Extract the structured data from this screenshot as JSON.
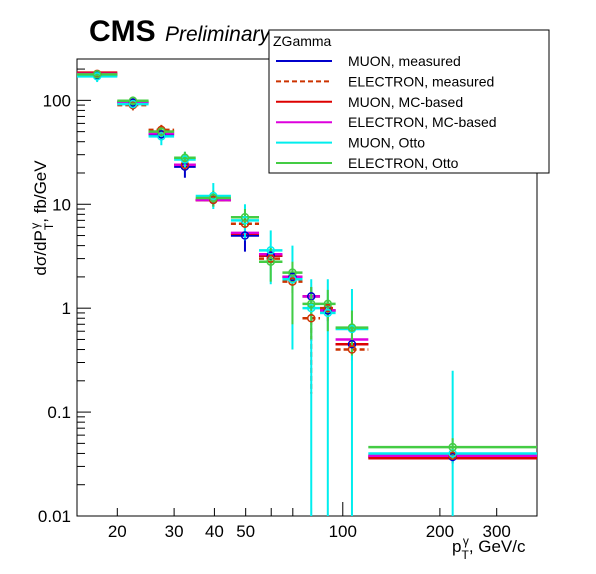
{
  "header": {
    "experiment": "CMS",
    "status": "Preliminary"
  },
  "chart_data": {
    "type": "scatter",
    "title": "",
    "xlabel": "p_T^γ, GeV/c",
    "ylabel": "dσ/dP_T^γ, fb/GeV",
    "xscale": "log",
    "yscale": "log",
    "xlim": [
      15,
      400
    ],
    "ylim": [
      0.01,
      250
    ],
    "grid": false,
    "x_tick_labels": [
      "20",
      "30",
      "40",
      "50",
      "100",
      "200",
      "300"
    ],
    "x_tick_values": [
      20,
      30,
      40,
      50,
      100,
      200,
      300
    ],
    "y_tick_labels": [
      "0.01",
      "0.1",
      "1",
      "10",
      "100"
    ],
    "y_tick_values": [
      0.01,
      0.1,
      1,
      10,
      100
    ],
    "legend": {
      "title": "ZGamma",
      "placement": "top-right"
    },
    "bins": [
      [
        15,
        20
      ],
      [
        20,
        25
      ],
      [
        25,
        30
      ],
      [
        30,
        35
      ],
      [
        35,
        45
      ],
      [
        45,
        55
      ],
      [
        55,
        65
      ],
      [
        65,
        75
      ],
      [
        75,
        85
      ],
      [
        85,
        95
      ],
      [
        95,
        120
      ],
      [
        120,
        400
      ]
    ],
    "series": [
      {
        "name": "MUON, measured",
        "color": "#0000cc",
        "style": "solid",
        "values": [
          175,
          95,
          47,
          23,
          11,
          5.0,
          3.2,
          2.0,
          1.3,
          0.95,
          0.45,
          0.037
        ],
        "err_low": [
          20,
          10,
          6,
          5,
          1.5,
          1.5,
          0.4,
          0.3,
          0.3,
          0.2,
          0.1,
          0.005
        ],
        "err_high": [
          20,
          10,
          6,
          5,
          1.5,
          1.5,
          0.4,
          0.3,
          0.3,
          0.2,
          0.1,
          0.005
        ]
      },
      {
        "name": "ELECTRON, measured",
        "color": "#cc3300",
        "style": "dashed",
        "values": [
          180,
          90,
          52,
          24,
          11,
          6.5,
          3.0,
          1.8,
          0.8,
          1.0,
          0.4,
          0.038
        ],
        "err_low": [
          15,
          10,
          6,
          4,
          1.5,
          1.0,
          0.5,
          0.4,
          0.65,
          0.2,
          0.1,
          0.005
        ],
        "err_high": [
          15,
          10,
          6,
          4,
          1.5,
          1.0,
          0.5,
          0.4,
          0.3,
          0.2,
          0.1,
          0.005
        ]
      },
      {
        "name": "MUON, MC-based",
        "color": "#dd0000",
        "style": "solid",
        "values": [
          185,
          96,
          50,
          24,
          11,
          5.2,
          3.2,
          2.0,
          1.3,
          0.95,
          0.45,
          0.036
        ],
        "err_low": [
          0,
          0,
          0,
          0,
          0,
          0,
          0,
          0,
          0,
          0,
          0,
          0
        ],
        "err_high": [
          0,
          0,
          0,
          0,
          0,
          0,
          0,
          0,
          0,
          0,
          0,
          0
        ]
      },
      {
        "name": "ELECTRON, MC-based",
        "color": "#dd00dd",
        "style": "solid",
        "values": [
          180,
          97,
          48,
          24,
          11,
          5.3,
          3.3,
          2.0,
          1.3,
          0.95,
          0.5,
          0.038
        ],
        "err_low": [
          0,
          0,
          0,
          0,
          0,
          0,
          0,
          0,
          0,
          0,
          0,
          0
        ],
        "err_high": [
          0,
          0,
          0,
          0,
          0,
          0,
          0,
          0,
          0,
          0,
          0,
          0
        ]
      },
      {
        "name": "MUON, Otto",
        "color": "#00eeee",
        "style": "solid",
        "values": [
          170,
          92,
          45,
          27,
          12,
          7.0,
          3.6,
          1.9,
          1.0,
          0.9,
          0.63,
          0.04
        ],
        "err_low": [
          20,
          10,
          8,
          5,
          3,
          2.5,
          1.9,
          1.5,
          0.995,
          0.895,
          0.625,
          0.0395
        ],
        "err_high": [
          20,
          10,
          8,
          5,
          4,
          3,
          2,
          2.1,
          0.9,
          1.0,
          0.9,
          0.21
        ]
      },
      {
        "name": "ELECTRON, Otto",
        "color": "#44cc44",
        "style": "solid",
        "values": [
          178,
          99,
          50,
          28,
          11.5,
          7.5,
          2.8,
          2.2,
          1.1,
          1.1,
          0.65,
          0.046
        ],
        "err_low": [
          15,
          10,
          5,
          4,
          2,
          1.5,
          1.0,
          1.5,
          0.6,
          0.5,
          0.3,
          0.01
        ],
        "err_high": [
          15,
          10,
          5,
          4,
          2,
          1.5,
          1.0,
          0.6,
          0.5,
          0.4,
          0.3,
          0.01
        ]
      }
    ]
  }
}
